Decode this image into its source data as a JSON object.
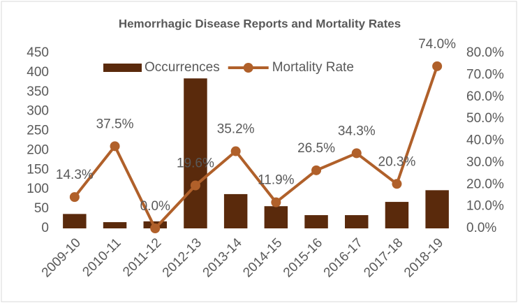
{
  "chart_data": {
    "type": "combo",
    "title": "Hemorrhagic Disease Reports and Mortality Rates",
    "categories": [
      "2009-10",
      "2010-11",
      "2011-12",
      "2012-13",
      "2013-14",
      "2014-15",
      "2015-16",
      "2016-17",
      "2017-18",
      "2018-19"
    ],
    "series": [
      {
        "name": "Occurrences",
        "type": "bar",
        "color": "#5a2a0c",
        "values": [
          37,
          16,
          18,
          385,
          88,
          57,
          34,
          34,
          68,
          98
        ]
      },
      {
        "name": "Mortality Rate",
        "type": "line",
        "axis": "y2",
        "color": "#b0602a",
        "values": [
          14.3,
          37.5,
          0.0,
          19.6,
          35.2,
          11.9,
          26.5,
          34.3,
          20.3,
          74.0
        ],
        "value_labels": [
          "14.3%",
          "37.5%",
          "0.0%",
          "19.6%",
          "35.2%",
          "11.9%",
          "26.5%",
          "34.3%",
          "20.3%",
          "74.0%"
        ]
      }
    ],
    "ylim": [
      0,
      450
    ],
    "yticks": [
      0,
      50,
      100,
      150,
      200,
      250,
      300,
      350,
      400,
      450
    ],
    "y2lim": [
      0,
      80
    ],
    "y2ticks": [
      {
        "value": 0,
        "label": "0.0%"
      },
      {
        "value": 10,
        "label": "10.0%"
      },
      {
        "value": 20,
        "label": "20.0%"
      },
      {
        "value": 30,
        "label": "30.0%"
      },
      {
        "value": 40,
        "label": "40.0%"
      },
      {
        "value": 50,
        "label": "50.0%"
      },
      {
        "value": 60,
        "label": "60.0%"
      },
      {
        "value": 70,
        "label": "70.0%"
      },
      {
        "value": 80,
        "label": "80.0%"
      }
    ],
    "legend": "top",
    "grid": false
  }
}
